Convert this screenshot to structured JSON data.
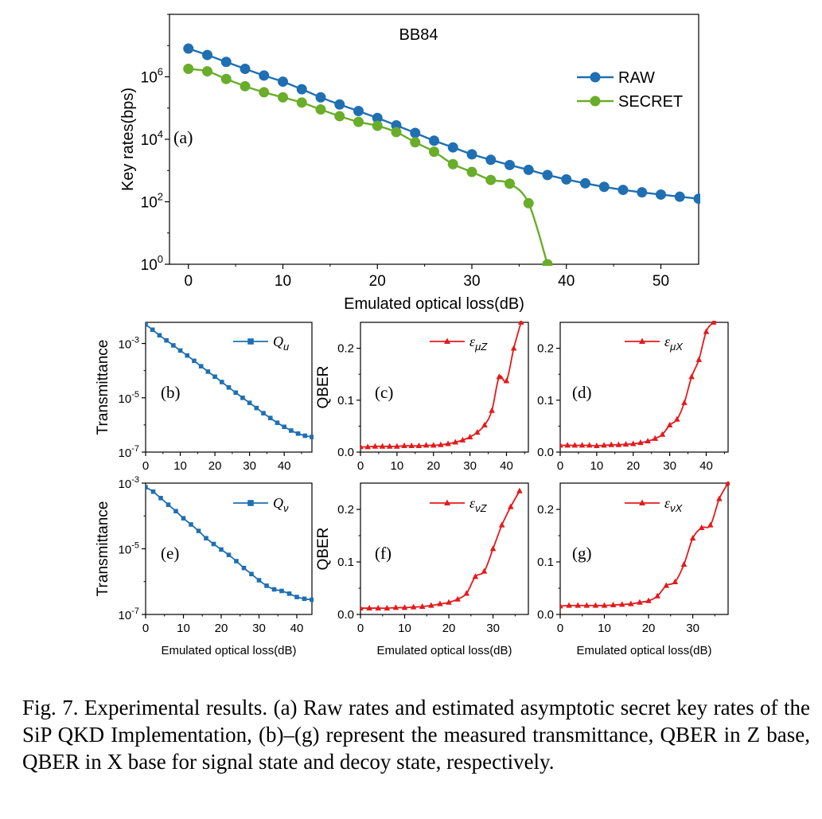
{
  "caption": "Fig. 7.    Experimental results. (a) Raw rates and estimated asymptotic secret key rates of the SiP QKD Implementation, (b)–(g) represent the measured transmittance, QBER in Z base, QBER in X base for signal state and decoy state, respectively.",
  "colors": {
    "raw": "#1f6fb2",
    "secret": "#6aad2a",
    "q": "#1f6fb2",
    "qber": "#e41a1c"
  },
  "chart_data": [
    {
      "id": "a",
      "panel_label": "(a)",
      "type": "line",
      "title": "BB84",
      "xlabel": "Emulated optical loss(dB)",
      "ylabel": "Key rates(bps)",
      "xlim": [
        -2,
        54
      ],
      "xticks": [
        0,
        10,
        20,
        30,
        40,
        50
      ],
      "yscale": "log",
      "ylim": [
        1,
        100000000
      ],
      "yticks": [
        {
          "v": 1,
          "b": "10",
          "e": "0"
        },
        {
          "v": 100,
          "b": "10",
          "e": "2"
        },
        {
          "v": 10000,
          "b": "10",
          "e": "4"
        },
        {
          "v": 1000000,
          "b": "10",
          "e": "6"
        }
      ],
      "legend_position": "right",
      "series": [
        {
          "name": "RAW",
          "marker": "circle",
          "color": "#1f6fb2",
          "x": [
            0,
            2,
            4,
            6,
            8,
            10,
            12,
            14,
            16,
            18,
            20,
            22,
            24,
            26,
            28,
            30,
            32,
            34,
            36,
            38,
            40,
            42,
            44,
            46,
            48,
            50,
            52,
            54
          ],
          "y": [
            8000000,
            5000000,
            3000000,
            1800000,
            1100000,
            700000,
            400000,
            220000,
            130000,
            80000,
            48000,
            28000,
            16000,
            9000,
            5500,
            3300,
            2200,
            1500,
            1050,
            720,
            520,
            390,
            300,
            240,
            200,
            170,
            145,
            125
          ]
        },
        {
          "name": "SECRET",
          "marker": "circle",
          "color": "#6aad2a",
          "x": [
            0,
            2,
            4,
            6,
            8,
            10,
            12,
            14,
            16,
            18,
            20,
            22,
            24,
            26,
            28,
            30,
            32,
            34,
            36,
            38
          ],
          "y": [
            1800000,
            1500000,
            850000,
            500000,
            320000,
            220000,
            150000,
            90000,
            55000,
            36000,
            27000,
            17000,
            8000,
            4000,
            1600,
            900,
            500,
            380,
            90,
            1
          ]
        }
      ]
    },
    {
      "id": "b",
      "panel_label": "(b)",
      "type": "line",
      "xlabel": "",
      "ylabel": "Transmittance",
      "xlim": [
        0,
        48
      ],
      "xticks": [
        0,
        10,
        20,
        30,
        40
      ],
      "yscale": "log",
      "ylim": [
        1e-07,
        0.006
      ],
      "yticks": [
        {
          "v": 1e-07,
          "b": "10",
          "e": "-7"
        },
        {
          "v": 1e-05,
          "b": "10",
          "e": "-5"
        },
        {
          "v": 0.001,
          "b": "10",
          "e": "-3"
        }
      ],
      "series": [
        {
          "name": "Q",
          "sub": "u",
          "marker": "square",
          "color": "#1f6fb2",
          "x": [
            0,
            2,
            4,
            6,
            8,
            10,
            12,
            14,
            16,
            18,
            20,
            22,
            24,
            26,
            28,
            30,
            32,
            34,
            36,
            38,
            40,
            42,
            44,
            46,
            48
          ],
          "y": [
            0.005,
            0.0032,
            0.002,
            0.0013,
            0.00085,
            0.00055,
            0.00036,
            0.00023,
            0.000145,
            9.2e-05,
            6e-05,
            3.8e-05,
            2.4e-05,
            1.55e-05,
            1e-05,
            6.5e-06,
            4.2e-06,
            2.7e-06,
            1.8e-06,
            1.2e-06,
            8.5e-07,
            6.2e-07,
            4.8e-07,
            4e-07,
            3.6e-07
          ]
        }
      ]
    },
    {
      "id": "c",
      "panel_label": "(c)",
      "type": "line",
      "xlabel": "",
      "ylabel": "QBER",
      "xlim": [
        0,
        46
      ],
      "xticks": [
        0,
        10,
        20,
        30,
        40
      ],
      "yscale": "linear",
      "ylim": [
        0,
        0.25
      ],
      "yticks": [
        {
          "v": 0,
          "t": "0.0"
        },
        {
          "v": 0.1,
          "t": "0.1"
        },
        {
          "v": 0.2,
          "t": "0.2"
        }
      ],
      "series": [
        {
          "name": "ε",
          "sub": "μZ",
          "marker": "triangle",
          "color": "#e41a1c",
          "x": [
            0,
            2,
            4,
            6,
            8,
            10,
            12,
            14,
            16,
            18,
            20,
            22,
            24,
            26,
            28,
            30,
            32,
            34,
            36,
            38,
            40,
            42,
            44
          ],
          "y": [
            0.01,
            0.01,
            0.011,
            0.011,
            0.011,
            0.011,
            0.012,
            0.012,
            0.012,
            0.013,
            0.013,
            0.014,
            0.016,
            0.019,
            0.023,
            0.029,
            0.038,
            0.052,
            0.08,
            0.145,
            0.137,
            0.2,
            0.25
          ]
        }
      ]
    },
    {
      "id": "d",
      "panel_label": "(d)",
      "type": "line",
      "xlabel": "",
      "ylabel": "",
      "xlim": [
        0,
        46
      ],
      "xticks": [
        0,
        10,
        20,
        30,
        40
      ],
      "yscale": "linear",
      "ylim": [
        0,
        0.25
      ],
      "yticks": [
        {
          "v": 0,
          "t": "0.0"
        },
        {
          "v": 0.1,
          "t": "0.1"
        },
        {
          "v": 0.2,
          "t": "0.2"
        }
      ],
      "series": [
        {
          "name": "ε",
          "sub": "μX",
          "marker": "triangle",
          "color": "#e41a1c",
          "x": [
            0,
            2,
            4,
            6,
            8,
            10,
            12,
            14,
            16,
            18,
            20,
            22,
            24,
            26,
            28,
            30,
            32,
            34,
            36,
            38,
            40,
            42,
            44
          ],
          "y": [
            0.013,
            0.013,
            0.013,
            0.013,
            0.013,
            0.012,
            0.013,
            0.014,
            0.014,
            0.015,
            0.016,
            0.018,
            0.021,
            0.026,
            0.034,
            0.052,
            0.063,
            0.095,
            0.145,
            0.178,
            0.232,
            0.25,
            0.26
          ]
        }
      ]
    },
    {
      "id": "e",
      "panel_label": "(e)",
      "type": "line",
      "xlabel": "Emulated optical loss(dB)",
      "ylabel": "Transmittance",
      "xlim": [
        0,
        44
      ],
      "xticks": [
        0,
        10,
        20,
        30,
        40
      ],
      "yscale": "log",
      "ylim": [
        1e-07,
        0.001
      ],
      "yticks": [
        {
          "v": 1e-07,
          "b": "10",
          "e": "-7"
        },
        {
          "v": 1e-05,
          "b": "10",
          "e": "-5"
        },
        {
          "v": 0.001,
          "b": "10",
          "e": "-3"
        }
      ],
      "series": [
        {
          "name": "Q",
          "sub": "ν",
          "marker": "square",
          "color": "#1f6fb2",
          "x": [
            0,
            2,
            4,
            6,
            8,
            10,
            12,
            14,
            16,
            18,
            20,
            22,
            24,
            26,
            28,
            30,
            32,
            34,
            36,
            38,
            40,
            42,
            44
          ],
          "y": [
            0.00075,
            0.00055,
            0.00035,
            0.00022,
            0.00014,
            8.5e-05,
            5.5e-05,
            3.5e-05,
            2.1e-05,
            1.4e-05,
            9.5e-06,
            6.5e-06,
            4.2e-06,
            2.6e-06,
            1.7e-06,
            1.1e-06,
            7.5e-07,
            5.8e-07,
            5.2e-07,
            4.3e-07,
            3.4e-07,
            3e-07,
            2.8e-07
          ]
        }
      ]
    },
    {
      "id": "f",
      "panel_label": "(f)",
      "type": "line",
      "xlabel": "Emulated optical loss(dB)",
      "ylabel": "QBER",
      "xlim": [
        0,
        38
      ],
      "xticks": [
        0,
        10,
        20,
        30
      ],
      "yscale": "linear",
      "ylim": [
        0,
        0.25
      ],
      "yticks": [
        {
          "v": 0,
          "t": "0.0"
        },
        {
          "v": 0.1,
          "t": "0.1"
        },
        {
          "v": 0.2,
          "t": "0.2"
        }
      ],
      "series": [
        {
          "name": "ε",
          "sub": "νZ",
          "marker": "triangle",
          "color": "#e41a1c",
          "x": [
            0,
            2,
            4,
            6,
            8,
            10,
            12,
            14,
            16,
            18,
            20,
            22,
            24,
            26,
            28,
            30,
            32,
            34,
            36
          ],
          "y": [
            0.012,
            0.012,
            0.012,
            0.012,
            0.013,
            0.013,
            0.014,
            0.015,
            0.017,
            0.02,
            0.023,
            0.029,
            0.04,
            0.072,
            0.082,
            0.125,
            0.17,
            0.205,
            0.235
          ]
        }
      ]
    },
    {
      "id": "g",
      "panel_label": "(g)",
      "type": "line",
      "xlabel": "Emulated optical loss(dB)",
      "ylabel": "",
      "xlim": [
        0,
        38
      ],
      "xticks": [
        0,
        10,
        20,
        30
      ],
      "yscale": "linear",
      "ylim": [
        0,
        0.25
      ],
      "yticks": [
        {
          "v": 0,
          "t": "0.0"
        },
        {
          "v": 0.1,
          "t": "0.1"
        },
        {
          "v": 0.2,
          "t": "0.2"
        }
      ],
      "series": [
        {
          "name": "ε",
          "sub": "νX",
          "marker": "triangle",
          "color": "#e41a1c",
          "x": [
            0,
            2,
            4,
            6,
            8,
            10,
            12,
            14,
            16,
            18,
            20,
            22,
            24,
            26,
            28,
            30,
            32,
            34,
            36,
            38
          ],
          "y": [
            0.016,
            0.017,
            0.017,
            0.017,
            0.017,
            0.017,
            0.018,
            0.019,
            0.02,
            0.023,
            0.026,
            0.035,
            0.055,
            0.062,
            0.095,
            0.145,
            0.165,
            0.17,
            0.22,
            0.25
          ]
        }
      ]
    }
  ]
}
